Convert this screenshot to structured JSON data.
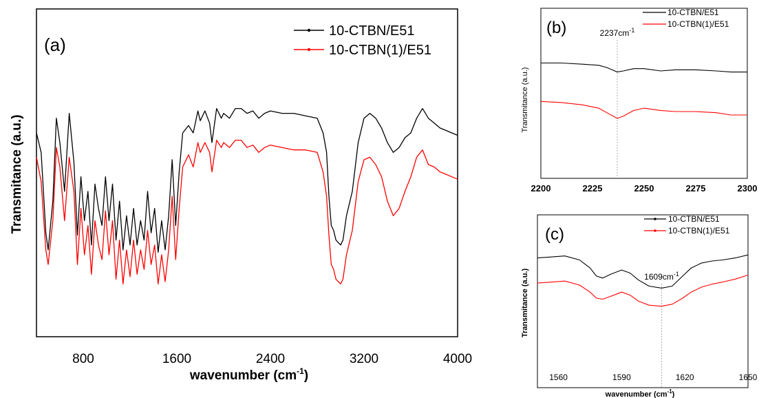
{
  "chart_data": [
    {
      "type": "line",
      "panel_label": "(a)",
      "title": "",
      "xlabel": "wavenumber (cm",
      "xlabel_sup": "-1",
      "xlabel_end": ")",
      "ylabel": "Transmitance (a.u.)",
      "xlim": [
        400,
        4000
      ],
      "ylim": [
        0,
        100
      ],
      "xticks": [
        800,
        1600,
        2400,
        3200,
        4000
      ],
      "x_tick_labels": [
        "800",
        "1600",
        "2400",
        "3200",
        "4000"
      ],
      "y_tick_labels": [],
      "grid": false,
      "legend_position": "top-right",
      "series": [
        {
          "name": "10-CTBN/E51",
          "color": "#000000",
          "x": [
            400,
            440,
            480,
            500,
            540,
            570,
            600,
            640,
            680,
            720,
            750,
            780,
            810,
            840,
            870,
            900,
            930,
            960,
            990,
            1020,
            1050,
            1080,
            1110,
            1140,
            1170,
            1200,
            1230,
            1260,
            1290,
            1320,
            1350,
            1380,
            1410,
            1440,
            1470,
            1500,
            1530,
            1560,
            1590,
            1620,
            1650,
            1700,
            1740,
            1780,
            1800,
            1840,
            1880,
            1900,
            1940,
            1980,
            2000,
            2050,
            2100,
            2150,
            2200,
            2250,
            2300,
            2350,
            2400,
            2500,
            2600,
            2700,
            2800,
            2850,
            2880,
            2900,
            2920,
            2940,
            2960,
            3000,
            3020,
            3050,
            3080,
            3100,
            3150,
            3200,
            3250,
            3300,
            3350,
            3400,
            3450,
            3500,
            3550,
            3600,
            3650,
            3700,
            3750,
            3800,
            3850,
            3900,
            3950,
            4000
          ],
          "values": [
            76,
            68,
            35,
            28,
            48,
            82,
            72,
            52,
            84,
            64,
            34,
            58,
            40,
            52,
            30,
            55,
            45,
            38,
            58,
            40,
            55,
            32,
            48,
            28,
            42,
            30,
            45,
            30,
            40,
            32,
            52,
            35,
            45,
            27,
            40,
            28,
            42,
            65,
            38,
            60,
            76,
            79,
            76,
            85,
            81,
            85,
            80,
            72,
            86,
            82,
            84,
            82,
            86,
            86,
            84,
            85,
            82,
            84,
            85,
            84,
            84,
            83,
            82,
            76,
            68,
            50,
            38,
            36,
            32,
            30,
            32,
            42,
            48,
            52,
            72,
            82,
            84,
            82,
            78,
            72,
            68,
            70,
            74,
            76,
            82,
            86,
            82,
            80,
            78,
            77,
            76,
            75
          ]
        },
        {
          "name": "10-CTBN(1)/E51",
          "color": "#ff0000",
          "x": [
            400,
            440,
            480,
            500,
            540,
            570,
            600,
            640,
            680,
            720,
            750,
            780,
            810,
            840,
            870,
            900,
            930,
            960,
            990,
            1020,
            1050,
            1080,
            1110,
            1140,
            1170,
            1200,
            1230,
            1260,
            1290,
            1320,
            1350,
            1380,
            1410,
            1440,
            1470,
            1500,
            1530,
            1560,
            1590,
            1620,
            1650,
            1700,
            1740,
            1780,
            1800,
            1840,
            1880,
            1900,
            1940,
            1980,
            2000,
            2050,
            2100,
            2150,
            2200,
            2250,
            2300,
            2350,
            2400,
            2500,
            2600,
            2700,
            2800,
            2850,
            2880,
            2900,
            2920,
            2940,
            2960,
            3000,
            3020,
            3050,
            3080,
            3100,
            3150,
            3200,
            3250,
            3300,
            3350,
            3400,
            3450,
            3500,
            3550,
            3600,
            3650,
            3700,
            3750,
            3800,
            3850,
            3900,
            3950,
            4000
          ],
          "values": [
            66,
            56,
            28,
            22,
            40,
            70,
            62,
            40,
            66,
            52,
            22,
            45,
            26,
            38,
            18,
            40,
            30,
            24,
            44,
            26,
            40,
            16,
            32,
            14,
            28,
            17,
            32,
            18,
            28,
            20,
            36,
            22,
            30,
            14,
            26,
            15,
            28,
            50,
            24,
            45,
            62,
            67,
            62,
            72,
            68,
            72,
            68,
            60,
            73,
            70,
            72,
            70,
            73,
            73,
            70,
            71,
            68,
            70,
            71,
            70,
            69,
            69,
            68,
            60,
            50,
            34,
            22,
            20,
            16,
            14,
            16,
            26,
            32,
            36,
            56,
            65,
            66,
            63,
            58,
            48,
            42,
            45,
            52,
            58,
            66,
            69,
            63,
            62,
            60,
            59,
            58,
            57
          ]
        }
      ]
    },
    {
      "type": "line",
      "panel_label": "(b)",
      "title": "",
      "xlabel": "",
      "ylabel": "Transmitance (a.u.)",
      "xlim": [
        2200,
        2300
      ],
      "ylim": [
        0,
        100
      ],
      "xticks": [
        2200,
        2225,
        2250,
        2275,
        2300
      ],
      "x_tick_labels": [
        "2200",
        "2225",
        "2250",
        "2275",
        "2300"
      ],
      "y_tick_labels": [],
      "grid": false,
      "legend_position": "top-right",
      "annotation": {
        "text": "2237cm",
        "sup": "-1",
        "x": 2237
      },
      "series": [
        {
          "name": "10-CTBN/E51",
          "color": "#000000",
          "x": [
            2200,
            2210,
            2220,
            2228,
            2232,
            2237,
            2240,
            2245,
            2250,
            2258,
            2265,
            2275,
            2285,
            2292,
            2300
          ],
          "values": [
            82,
            82,
            81,
            80,
            78,
            74,
            75,
            77,
            77,
            75,
            76,
            76,
            75,
            74,
            74
          ]
        },
        {
          "name": "10-CTBN(1)/E51",
          "color": "#ff0000",
          "x": [
            2200,
            2210,
            2220,
            2228,
            2232,
            2237,
            2240,
            2245,
            2250,
            2258,
            2265,
            2275,
            2285,
            2292,
            2300
          ],
          "values": [
            48,
            47,
            45,
            42,
            38,
            33,
            35,
            40,
            42,
            40,
            39,
            39,
            38,
            36,
            36
          ]
        }
      ]
    },
    {
      "type": "line",
      "panel_label": "(c)",
      "title": "",
      "xlabel": "wavenumber (cm",
      "xlabel_sup": "-1",
      "xlabel_end": ")",
      "ylabel": "Transmitance (a.u.)",
      "xlim": [
        1550,
        1650
      ],
      "ylim": [
        0,
        100
      ],
      "xticks": [
        1560,
        1590,
        1620,
        1650
      ],
      "x_tick_labels": [
        "1560",
        "1590",
        "1620",
        "1650"
      ],
      "y_tick_labels": [],
      "grid": false,
      "legend_position": "top-right",
      "annotation": {
        "text": "1609cm",
        "sup": "-1",
        "x": 1609
      },
      "series": [
        {
          "name": "10-CTBN/E51",
          "color": "#000000",
          "x": [
            1550,
            1557,
            1563,
            1570,
            1575,
            1578,
            1581,
            1585,
            1590,
            1594,
            1598,
            1603,
            1609,
            1614,
            1619,
            1623,
            1628,
            1633,
            1638,
            1644,
            1650
          ],
          "values": [
            90,
            91,
            92,
            88,
            80,
            72,
            70,
            74,
            78,
            75,
            68,
            62,
            60,
            62,
            72,
            80,
            85,
            87,
            88,
            90,
            93
          ]
        },
        {
          "name": "10-CTBN(1)/E51",
          "color": "#ff0000",
          "x": [
            1550,
            1557,
            1563,
            1570,
            1575,
            1578,
            1581,
            1585,
            1590,
            1594,
            1598,
            1603,
            1609,
            1614,
            1619,
            1623,
            1628,
            1633,
            1638,
            1644,
            1650
          ],
          "values": [
            65,
            66,
            67,
            63,
            56,
            50,
            49,
            52,
            56,
            53,
            47,
            43,
            42,
            44,
            50,
            56,
            61,
            64,
            66,
            69,
            73
          ]
        }
      ]
    }
  ]
}
